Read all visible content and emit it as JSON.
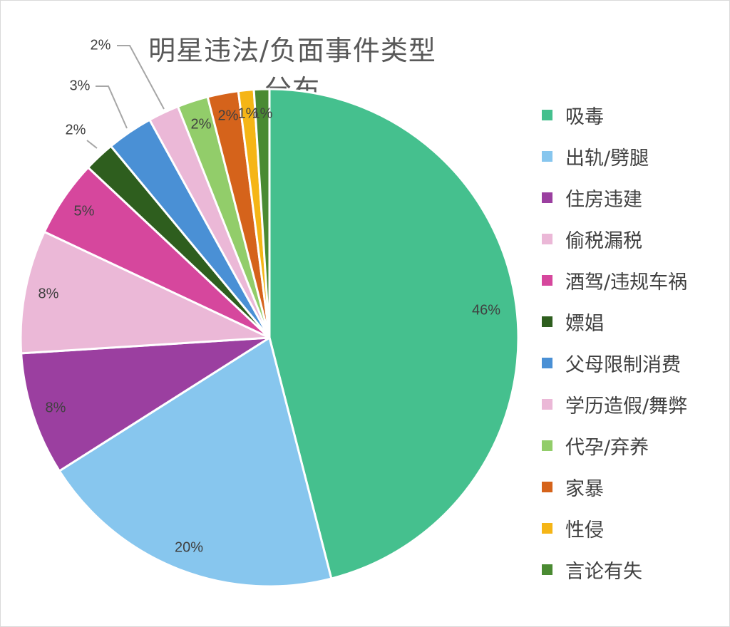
{
  "chart_data": {
    "type": "pie",
    "title": "明星违法/负面事件类型分布",
    "legend_position": "right",
    "start_angle_deg": 0,
    "slices": [
      {
        "category": "吸毒",
        "value": 46,
        "label": "46%",
        "color": "#45c08e"
      },
      {
        "category": "出轨/劈腿",
        "value": 20,
        "label": "20%",
        "color": "#87c6ee"
      },
      {
        "category": "住房违建",
        "value": 8,
        "label": "8%",
        "color": "#9b3fa0"
      },
      {
        "category": "偷税漏税",
        "value": 8,
        "label": "8%",
        "color": "#ebb8d7"
      },
      {
        "category": "酒驾/违规车祸",
        "value": 5,
        "label": "5%",
        "color": "#d6479d"
      },
      {
        "category": "嫖娼",
        "value": 2,
        "label": "2%",
        "color": "#2e5e1e"
      },
      {
        "category": "父母限制消费",
        "value": 3,
        "label": "3%",
        "color": "#4a90d5"
      },
      {
        "category": "学历造假/舞弊",
        "value": 2,
        "label": "2%",
        "color": "#ebb8d7"
      },
      {
        "category": "代孕/弃养",
        "value": 2,
        "label": "2%",
        "color": "#92cd6a"
      },
      {
        "category": "家暴",
        "value": 2,
        "label": "2%",
        "color": "#d5631b"
      },
      {
        "category": "性侵",
        "value": 1,
        "label": "1%",
        "color": "#f5b516"
      },
      {
        "category": "言论有失",
        "value": 1,
        "label": "1%",
        "color": "#4a8a32"
      }
    ]
  }
}
